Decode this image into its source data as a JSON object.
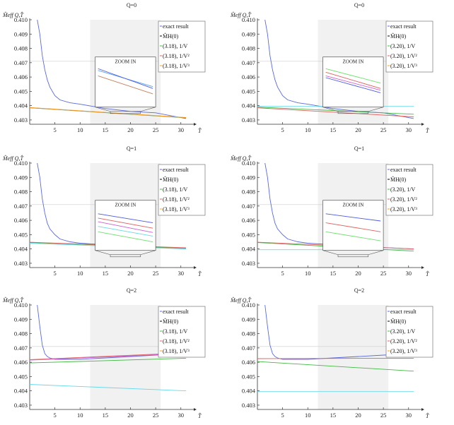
{
  "chart_data": [
    {
      "type": "line",
      "title": "Q=0",
      "ylabel": "M̂eff Q,T̂",
      "xlabel": "T̂",
      "xlim": [
        0,
        32
      ],
      "ylim": [
        4.027,
        4.1
      ],
      "x_ticks": [
        5,
        10,
        15,
        20,
        25,
        30
      ],
      "y_ticks": [
        "0.403",
        "0.404",
        "0.405",
        "0.406",
        "0.407",
        "0.408",
        "0.409",
        "0.410"
      ],
      "y_tick_values": [
        4.03,
        4.04,
        4.05,
        4.06,
        4.07,
        4.08,
        4.09,
        4.1
      ],
      "shaded_region": [
        12,
        26
      ],
      "hline": 4.071,
      "legend": [
        "exact result",
        "M̂H(0)",
        "(3.18), 1/V",
        "(3.18), 1/V²",
        "(3.18), 1/V³"
      ],
      "legend_colors": [
        "#5b6ad8",
        "#000000",
        "#44b844",
        "#e06060",
        "#f0a020"
      ],
      "series": [
        {
          "color": "#5b6ad8",
          "x": [
            1.5,
            2,
            2.5,
            3,
            3.5,
            4,
            5,
            6,
            8,
            10,
            15,
            20,
            25,
            31
          ],
          "values": [
            4.1,
            4.09,
            4.075,
            4.065,
            4.058,
            4.053,
            4.047,
            4.044,
            4.042,
            4.041,
            4.038,
            4.036,
            4.035,
            4.031
          ]
        },
        {
          "color": "#44b844",
          "x": [
            0,
            31
          ],
          "values": [
            4.0385,
            4.0315
          ]
        },
        {
          "color": "#e06060",
          "x": [
            0,
            31
          ],
          "values": [
            4.0386,
            4.0316
          ]
        },
        {
          "color": "#f0a020",
          "x": [
            0,
            31
          ],
          "values": [
            4.0387,
            4.0317
          ]
        }
      ],
      "zoom": {
        "label": "ZOOM IN",
        "lines": [
          [
            "#5aa6e8",
            0.0,
            0.1,
            1.0,
            0.55
          ],
          [
            "#4d5ae0",
            0.0,
            0.05,
            1.0,
            0.6
          ],
          [
            "#c08060",
            0.0,
            0.25,
            1.0,
            0.75
          ]
        ]
      }
    },
    {
      "type": "line",
      "title": "Q=0",
      "ylabel": "M̂eff Q,T̂",
      "xlabel": "T̂",
      "xlim": [
        0,
        32
      ],
      "ylim": [
        4.027,
        4.1
      ],
      "x_ticks": [
        5,
        10,
        15,
        20,
        25,
        30
      ],
      "y_ticks": [
        "0.403",
        "0.404",
        "0.405",
        "0.406",
        "0.407",
        "0.408",
        "0.409",
        "0.410"
      ],
      "y_tick_values": [
        4.03,
        4.04,
        4.05,
        4.06,
        4.07,
        4.08,
        4.09,
        4.1
      ],
      "shaded_region": [
        12,
        26
      ],
      "hline": 4.071,
      "legend": [
        "exact result",
        "M̂H(0)",
        "(3.20), 1/V",
        "(3.20), 1/V²",
        "(3.20), 1/V³"
      ],
      "legend_colors": [
        "#5b6ad8",
        "#000000",
        "#44b844",
        "#e06060",
        "#f0a020"
      ],
      "series": [
        {
          "color": "#5b6ad8",
          "x": [
            1.5,
            2,
            2.5,
            3,
            3.5,
            4,
            5,
            6,
            8,
            10,
            15,
            20,
            25,
            31
          ],
          "values": [
            4.1,
            4.09,
            4.075,
            4.065,
            4.058,
            4.053,
            4.047,
            4.044,
            4.042,
            4.041,
            4.038,
            4.036,
            4.035,
            4.031
          ]
        },
        {
          "color": "#6ad8e8",
          "x": [
            0,
            31
          ],
          "values": [
            4.0395,
            4.0395
          ]
        },
        {
          "color": "#44b844",
          "x": [
            0,
            31
          ],
          "values": [
            4.039,
            4.034
          ]
        },
        {
          "color": "#e06060",
          "x": [
            0,
            31
          ],
          "values": [
            4.0385,
            4.0322
          ]
        }
      ],
      "zoom": {
        "label": "ZOOM IN",
        "lines": [
          [
            "#6ce06c",
            0.0,
            0.05,
            1.0,
            0.45
          ],
          [
            "#e06060",
            0.0,
            0.15,
            1.0,
            0.6
          ],
          [
            "#d060d0",
            0.0,
            0.25,
            1.0,
            0.65
          ],
          [
            "#4d5ae0",
            0.0,
            0.3,
            1.0,
            0.72
          ]
        ]
      }
    },
    {
      "type": "line",
      "title": "Q=1",
      "ylabel": "M̂eff Q,T̂",
      "xlabel": "T̂",
      "xlim": [
        0,
        32
      ],
      "ylim": [
        4.027,
        4.1
      ],
      "x_ticks": [
        5,
        10,
        15,
        20,
        25,
        30
      ],
      "y_ticks": [
        "0.403",
        "0.404",
        "0.405",
        "0.406",
        "0.407",
        "0.408",
        "0.409",
        "0.410"
      ],
      "y_tick_values": [
        4.03,
        4.04,
        4.05,
        4.06,
        4.07,
        4.08,
        4.09,
        4.1
      ],
      "shaded_region": [
        12,
        26
      ],
      "hline": 4.071,
      "legend": [
        "exact result",
        "M̂H(0)",
        "(3.18), 1/V",
        "(3.18), 1/V²",
        "(3.18), 1/V³"
      ],
      "legend_colors": [
        "#5b6ad8",
        "#000000",
        "#44b844",
        "#e06060",
        "#f0a020"
      ],
      "series": [
        {
          "color": "#5b6ad8",
          "x": [
            1.5,
            2,
            2.5,
            3,
            3.5,
            4,
            5,
            6,
            8,
            10,
            15,
            20,
            25,
            31
          ],
          "values": [
            4.1,
            4.09,
            4.075,
            4.065,
            4.058,
            4.054,
            4.05,
            4.047,
            4.045,
            4.044,
            4.043,
            4.042,
            4.041,
            4.04
          ]
        },
        {
          "color": "#44b844",
          "x": [
            0,
            31
          ],
          "values": [
            4.0445,
            4.0405
          ]
        },
        {
          "color": "#e06060",
          "x": [
            0,
            31
          ],
          "values": [
            4.0447,
            4.0408
          ]
        },
        {
          "color": "#6ad8e8",
          "x": [
            0,
            31
          ],
          "values": [
            4.044,
            4.04
          ]
        }
      ],
      "zoom": {
        "label": "ZOOM IN",
        "lines": [
          [
            "#4d5ae0",
            0.0,
            0.1,
            1.0,
            0.35
          ],
          [
            "#e06060",
            0.0,
            0.22,
            1.0,
            0.5
          ],
          [
            "#d060d0",
            0.0,
            0.32,
            1.0,
            0.62
          ],
          [
            "#6ad8e8",
            0.0,
            0.45,
            1.0,
            0.72
          ],
          [
            "#6ce06c",
            0.0,
            0.6,
            1.0,
            0.88
          ]
        ]
      }
    },
    {
      "type": "line",
      "title": "Q=1",
      "ylabel": "M̂eff Q,T̂",
      "xlabel": "T̂",
      "xlim": [
        0,
        32
      ],
      "ylim": [
        4.027,
        4.1
      ],
      "x_ticks": [
        5,
        10,
        15,
        20,
        25,
        30
      ],
      "y_ticks": [
        "0.403",
        "0.404",
        "0.405",
        "0.406",
        "0.407",
        "0.408",
        "0.409",
        "0.410"
      ],
      "y_tick_values": [
        4.03,
        4.04,
        4.05,
        4.06,
        4.07,
        4.08,
        4.09,
        4.1
      ],
      "shaded_region": [
        12,
        26
      ],
      "hline": 4.071,
      "legend": [
        "exact result",
        "M̂H(0)",
        "(3.20), 1/V",
        "(3.20), 1/V²",
        "(3.20), 1/V³"
      ],
      "legend_colors": [
        "#5b6ad8",
        "#000000",
        "#44b844",
        "#e06060",
        "#f0a020"
      ],
      "series": [
        {
          "color": "#5b6ad8",
          "x": [
            1.5,
            2,
            2.5,
            3,
            3.5,
            4,
            5,
            6,
            8,
            10,
            15,
            20,
            25,
            31
          ],
          "values": [
            4.1,
            4.09,
            4.075,
            4.065,
            4.058,
            4.054,
            4.05,
            4.047,
            4.045,
            4.044,
            4.043,
            4.042,
            4.041,
            4.04
          ]
        },
        {
          "color": "#6ad8e8",
          "x": [
            0,
            31
          ],
          "values": [
            4.0395,
            4.0395
          ]
        },
        {
          "color": "#44b844",
          "x": [
            0,
            31
          ],
          "values": [
            4.0445,
            4.0385
          ]
        },
        {
          "color": "#e06060",
          "x": [
            0,
            31
          ],
          "values": [
            4.0447,
            4.04
          ]
        }
      ],
      "zoom": {
        "label": "ZOOM IN",
        "lines": [
          [
            "#4d5ae0",
            0.0,
            0.1,
            1.0,
            0.3
          ],
          [
            "#e06060",
            0.0,
            0.35,
            1.0,
            0.6
          ],
          [
            "#6ce06c",
            0.0,
            0.6,
            1.0,
            0.85
          ]
        ]
      }
    },
    {
      "type": "line",
      "title": "Q=2",
      "ylabel": "M̂eff Q,T̂",
      "xlabel": "T̂",
      "xlim": [
        0,
        32
      ],
      "ylim": [
        4.027,
        4.1
      ],
      "x_ticks": [
        5,
        10,
        15,
        20,
        25,
        30
      ],
      "y_ticks": [
        "0.403",
        "0.404",
        "0.405",
        "0.406",
        "0.407",
        "0.408",
        "0.409",
        "0.410"
      ],
      "y_tick_values": [
        4.03,
        4.04,
        4.05,
        4.06,
        4.07,
        4.08,
        4.09,
        4.1
      ],
      "shaded_region": [
        12,
        26
      ],
      "hline": 4.071,
      "legend": [
        "exact result",
        "M̂H(0)",
        "(3.18), 1/V",
        "(3.18), 1/V²",
        "(3.18), 1/V³"
      ],
      "legend_colors": [
        "#5b6ad8",
        "#000000",
        "#44b844",
        "#e06060",
        "#f0a020"
      ],
      "series": [
        {
          "color": "#5b6ad8",
          "x": [
            1.5,
            2,
            2.5,
            3,
            3.5,
            4,
            5,
            6,
            8,
            10,
            15,
            20,
            25,
            31
          ],
          "values": [
            4.1,
            4.085,
            4.072,
            4.066,
            4.064,
            4.063,
            4.062,
            4.062,
            4.062,
            4.062,
            4.063,
            4.064,
            4.065,
            4.066
          ]
        },
        {
          "color": "#e06060",
          "x": [
            0,
            31
          ],
          "values": [
            4.0618,
            4.0665
          ]
        },
        {
          "color": "#d060d0",
          "x": [
            0,
            31
          ],
          "values": [
            4.0615,
            4.066
          ]
        },
        {
          "color": "#44b844",
          "x": [
            0,
            31
          ],
          "values": [
            4.0595,
            4.0628
          ]
        },
        {
          "color": "#6ad8e8",
          "x": [
            0,
            31
          ],
          "values": [
            4.0445,
            4.04
          ]
        }
      ],
      "zoom": null
    },
    {
      "type": "line",
      "title": "Q=2",
      "ylabel": "M̂eff Q,T̂",
      "xlabel": "T̂",
      "xlim": [
        0,
        32
      ],
      "ylim": [
        4.027,
        4.1
      ],
      "x_ticks": [
        5,
        10,
        15,
        20,
        25,
        30
      ],
      "y_ticks": [
        "0.403",
        "0.404",
        "0.405",
        "0.406",
        "0.407",
        "0.408",
        "0.409",
        "0.410"
      ],
      "y_tick_values": [
        4.03,
        4.04,
        4.05,
        4.06,
        4.07,
        4.08,
        4.09,
        4.1
      ],
      "shaded_region": [
        12,
        26
      ],
      "hline": 4.071,
      "legend": [
        "exact result",
        "M̂H(0)",
        "(3.20), 1/V",
        "(3.20), 1/V²",
        "(3.20), 1/V³"
      ],
      "legend_colors": [
        "#5b6ad8",
        "#000000",
        "#44b844",
        "#e06060",
        "#f0a020"
      ],
      "series": [
        {
          "color": "#5b6ad8",
          "x": [
            1.5,
            2,
            2.5,
            3,
            3.5,
            4,
            5,
            6,
            8,
            10,
            15,
            20,
            25,
            31
          ],
          "values": [
            4.1,
            4.085,
            4.072,
            4.066,
            4.064,
            4.063,
            4.062,
            4.062,
            4.062,
            4.062,
            4.063,
            4.064,
            4.065,
            4.066
          ]
        },
        {
          "color": "#e06060",
          "x": [
            0,
            31
          ],
          "values": [
            4.0625,
            4.0628
          ]
        },
        {
          "color": "#44b844",
          "x": [
            0,
            31
          ],
          "values": [
            4.0605,
            4.0538
          ]
        },
        {
          "color": "#6ad8e8",
          "x": [
            0,
            31
          ],
          "values": [
            4.0395,
            4.0395
          ]
        }
      ],
      "zoom": null
    }
  ]
}
